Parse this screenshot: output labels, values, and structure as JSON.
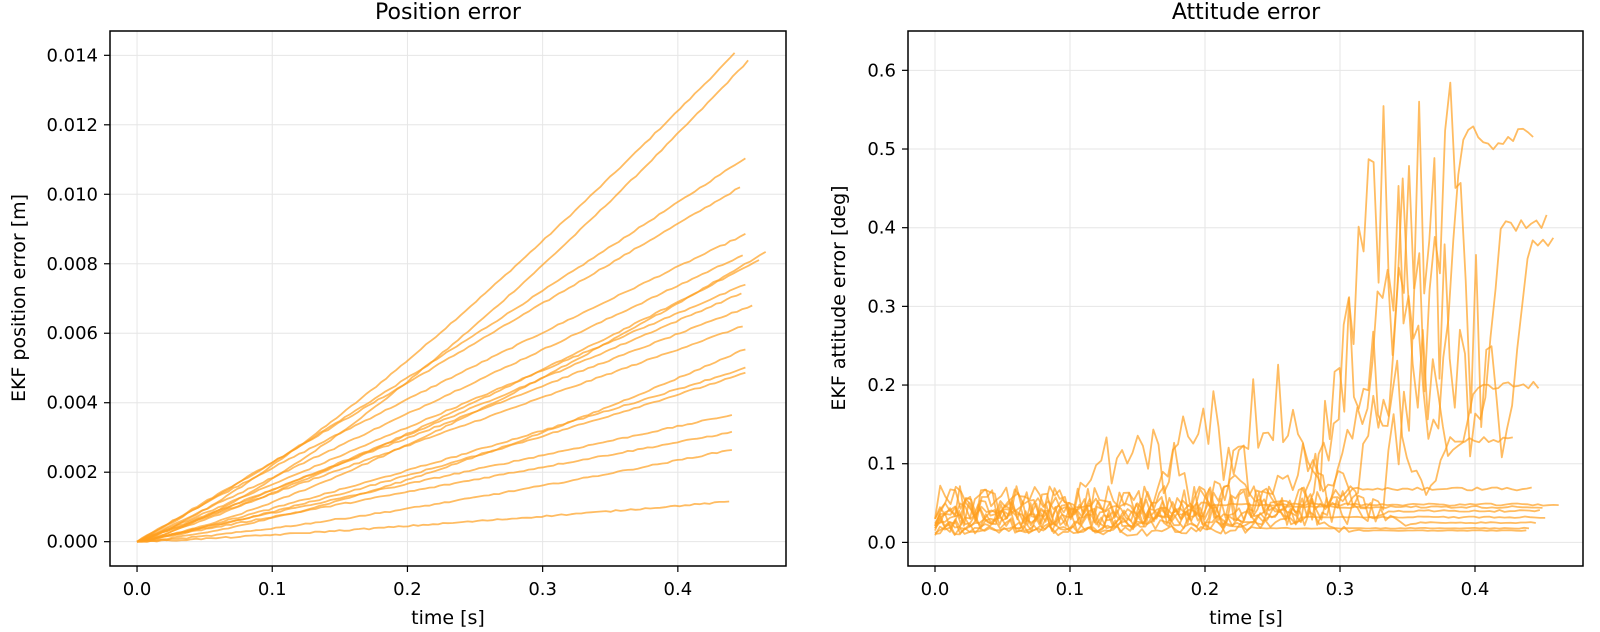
{
  "chart_data": [
    {
      "type": "line",
      "title": "Position error",
      "xlabel": "time [s]",
      "ylabel": "EKF position error [m]",
      "xlim": [
        -0.02,
        0.48
      ],
      "ylim": [
        -0.0007,
        0.0147
      ],
      "xticks": [
        "0.0",
        "0.1",
        "0.2",
        "0.3",
        "0.4"
      ],
      "yticks": [
        "0.000",
        "0.002",
        "0.004",
        "0.006",
        "0.008",
        "0.010",
        "0.012",
        "0.014"
      ],
      "xtick_values": [
        0.0,
        0.1,
        0.2,
        0.3,
        0.4
      ],
      "ytick_values": [
        0.0,
        0.002,
        0.004,
        0.006,
        0.008,
        0.01,
        0.012,
        0.014
      ],
      "grid": true,
      "line_color": "#ffa020",
      "series": [
        {
          "end_time": 0.442,
          "end_value": 0.01405,
          "curvature": 1.25
        },
        {
          "end_time": 0.452,
          "end_value": 0.01385,
          "curvature": 1.35
        },
        {
          "end_time": 0.45,
          "end_value": 0.01105,
          "curvature": 1.05
        },
        {
          "end_time": 0.446,
          "end_value": 0.0102,
          "curvature": 1.0
        },
        {
          "end_time": 0.45,
          "end_value": 0.00885,
          "curvature": 0.95
        },
        {
          "end_time": 0.465,
          "end_value": 0.00835,
          "curvature": 1.3
        },
        {
          "end_time": 0.448,
          "end_value": 0.00825,
          "curvature": 1.0
        },
        {
          "end_time": 0.46,
          "end_value": 0.0081,
          "curvature": 1.15
        },
        {
          "end_time": 0.45,
          "end_value": 0.0074,
          "curvature": 1.0
        },
        {
          "end_time": 0.447,
          "end_value": 0.00715,
          "curvature": 1.05
        },
        {
          "end_time": 0.455,
          "end_value": 0.0068,
          "curvature": 1.0
        },
        {
          "end_time": 0.448,
          "end_value": 0.0062,
          "curvature": 1.0
        },
        {
          "end_time": 0.45,
          "end_value": 0.00555,
          "curvature": 1.4
        },
        {
          "end_time": 0.45,
          "end_value": 0.005,
          "curvature": 1.1
        },
        {
          "end_time": 0.45,
          "end_value": 0.00485,
          "curvature": 1.15
        },
        {
          "end_time": 0.44,
          "end_value": 0.00365,
          "curvature": 1.0
        },
        {
          "end_time": 0.44,
          "end_value": 0.00315,
          "curvature": 1.0
        },
        {
          "end_time": 0.44,
          "end_value": 0.00265,
          "curvature": 1.3
        },
        {
          "end_time": 0.438,
          "end_value": 0.00115,
          "curvature": 1.2
        }
      ]
    },
    {
      "type": "line",
      "title": "Attitude error",
      "xlabel": "time [s]",
      "ylabel": "EKF attitude error [deg]",
      "xlim": [
        -0.02,
        0.48
      ],
      "ylim": [
        -0.03,
        0.65
      ],
      "xticks": [
        "0.0",
        "0.1",
        "0.2",
        "0.3",
        "0.4"
      ],
      "yticks": [
        "0.0",
        "0.1",
        "0.2",
        "0.3",
        "0.4",
        "0.5",
        "0.6"
      ],
      "xtick_values": [
        0.0,
        0.1,
        0.2,
        0.3,
        0.4
      ],
      "ytick_values": [
        0.0,
        0.1,
        0.2,
        0.3,
        0.4,
        0.5,
        0.6
      ],
      "grid": true,
      "line_color": "#ffa020",
      "series": [
        {
          "end_time": 0.443,
          "base": 0.05,
          "end_value": 0.515,
          "spike_time": 0.33,
          "spike_peak": 0.6
        },
        {
          "end_time": 0.453,
          "base": 0.05,
          "end_value": 0.405,
          "spike_time": 0.36,
          "spike_peak": 0.59
        },
        {
          "end_time": 0.458,
          "base": 0.04,
          "end_value": 0.383,
          "spike_time": 0.38,
          "spike_peak": 0.61
        },
        {
          "end_time": 0.447,
          "base": 0.04,
          "end_value": 0.2,
          "spike_time": 0.34,
          "spike_peak": 0.55
        },
        {
          "end_time": 0.428,
          "base": 0.035,
          "end_value": 0.13,
          "spike_time": 0.32,
          "spike_peak": 0.42
        },
        {
          "end_time": 0.442,
          "base": 0.03,
          "end_value": 0.068,
          "spike_time": 0.25,
          "spike_peak": 0.3
        },
        {
          "end_time": 0.462,
          "base": 0.05,
          "end_value": 0.048,
          "spike_time": 0.15,
          "spike_peak": 0.18
        },
        {
          "end_time": 0.45,
          "base": 0.035,
          "end_value": 0.045,
          "spike_time": 0.2,
          "spike_peak": 0.22
        },
        {
          "end_time": 0.448,
          "base": 0.03,
          "end_value": 0.04,
          "spike_time": 0.28,
          "spike_peak": 0.15
        },
        {
          "end_time": 0.452,
          "base": 0.025,
          "end_value": 0.032,
          "spike_time": 0.22,
          "spike_peak": 0.1
        },
        {
          "end_time": 0.445,
          "base": 0.02,
          "end_value": 0.025,
          "spike_time": 0.3,
          "spike_peak": 0.08
        },
        {
          "end_time": 0.44,
          "base": 0.018,
          "end_value": 0.018,
          "spike_time": 0.18,
          "spike_peak": 0.06
        },
        {
          "end_time": 0.438,
          "base": 0.015,
          "end_value": 0.015,
          "spike_time": 0.26,
          "spike_peak": 0.05
        }
      ]
    }
  ]
}
